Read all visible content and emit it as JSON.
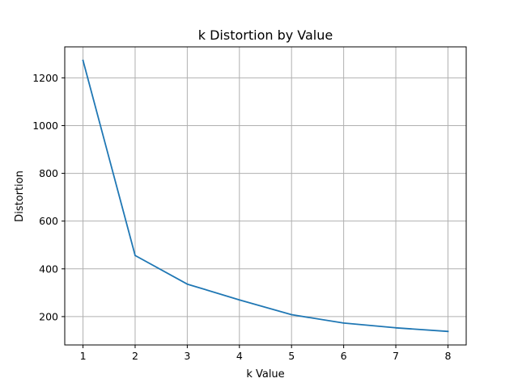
{
  "chart_data": {
    "type": "line",
    "title": "k Distortion by Value",
    "xlabel": "k Value",
    "ylabel": "Distortion",
    "x": [
      1,
      2,
      3,
      4,
      5,
      6,
      7,
      8
    ],
    "series": [
      {
        "values": [
          1273,
          456,
          336,
          270,
          208,
          173,
          153,
          138
        ],
        "color": "#1f77b4"
      }
    ],
    "xlim": [
      0.65,
      8.35
    ],
    "ylim": [
      81.25,
      1329.75
    ],
    "xticks": [
      1,
      2,
      3,
      4,
      5,
      6,
      7,
      8
    ],
    "yticks": [
      200,
      400,
      600,
      800,
      1000,
      1200
    ],
    "grid": true
  }
}
